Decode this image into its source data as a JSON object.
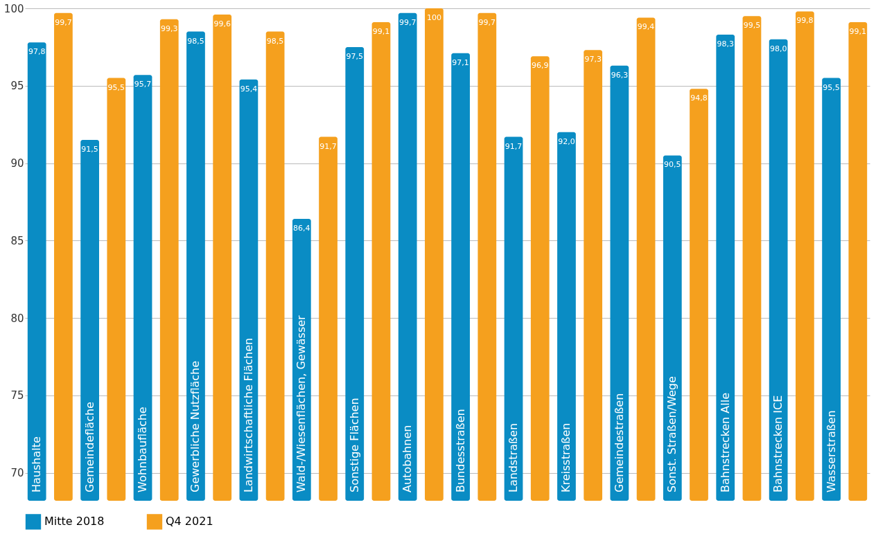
{
  "chart_data": {
    "type": "bar",
    "categories": [
      "Haushalte",
      "Gemeindefläche",
      "Wohnbaufläche",
      "Gewerbliche Nutzfläche",
      "Landwirtschaftliche Flächen",
      "Wald-/Wiesenflächen, Gewässer",
      "Sonstige Flächen",
      "Autobahnen",
      "Bundesstraßen",
      "Landstraßen",
      "Kreisstraßen",
      "Gemeindestraßen",
      "Sonst. Straßen/Wege",
      "Bahnstrecken Alle",
      "Bahnstrecken ICE",
      "Wasserstraßen"
    ],
    "series": [
      {
        "name": "Mitte 2018",
        "color": "#0a8cc4",
        "values": [
          97.8,
          91.5,
          95.7,
          98.5,
          95.4,
          86.4,
          97.5,
          99.7,
          97.1,
          91.7,
          92.0,
          96.3,
          90.5,
          98.3,
          98.0,
          95.5
        ],
        "value_labels": [
          "97,8",
          "91,5",
          "95,7",
          "98,5",
          "95,4",
          "86,4",
          "97,5",
          "99,7",
          "97,1",
          "91,7",
          "92,0",
          "96,3",
          "90,5",
          "98,3",
          "98,0",
          "95,5"
        ]
      },
      {
        "name": "Q4 2021",
        "color": "#f5a01e",
        "values": [
          99.7,
          95.5,
          99.3,
          99.6,
          98.5,
          91.7,
          99.1,
          100,
          99.7,
          96.9,
          97.3,
          99.4,
          94.8,
          99.5,
          99.8,
          99.1
        ],
        "value_labels": [
          "99,7",
          "95,5",
          "99,3",
          "99,6",
          "98,5",
          "91,7",
          "99,1",
          "100",
          "99,7",
          "96,9",
          "97,3",
          "99,4",
          "94,8",
          "99,5",
          "99,8",
          "99,1"
        ]
      }
    ],
    "ylim": [
      68.2,
      100
    ],
    "yticks": [
      70,
      75,
      80,
      85,
      90,
      95,
      100
    ],
    "grid": "y",
    "legend": "bottom",
    "tick_labels": "y"
  }
}
